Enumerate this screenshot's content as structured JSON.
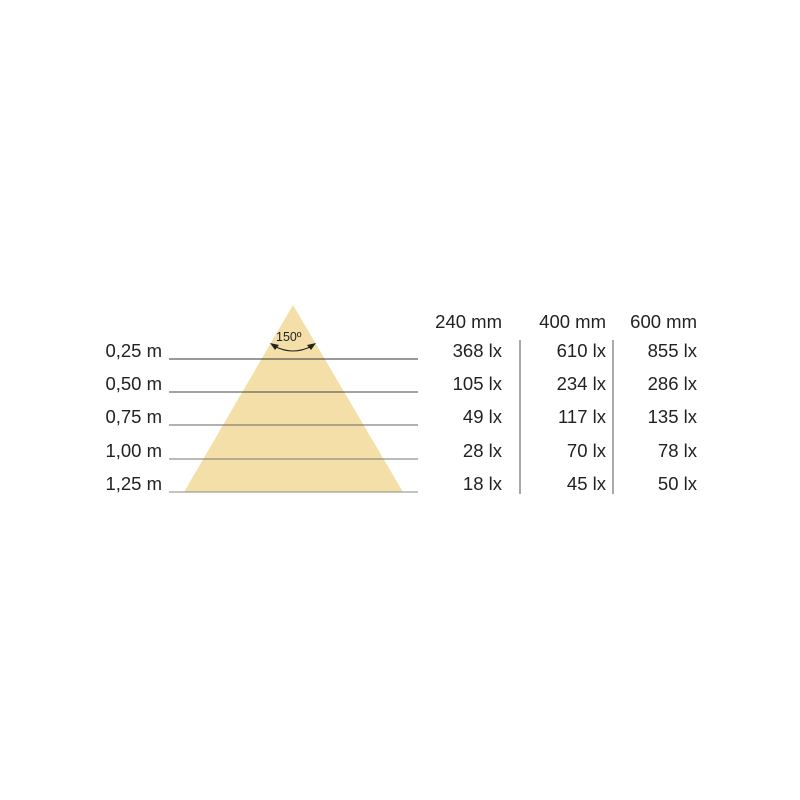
{
  "beam_angle": "150º",
  "beam_color": "#f5dfa8",
  "distances": [
    "0,25 m",
    "0,50 m",
    "0,75 m",
    "1,00 m",
    "1,25 m"
  ],
  "columns": [
    {
      "header": "240 mm",
      "values": [
        "368 lx",
        "105 lx",
        "49 lx",
        "28 lx",
        "18 lx"
      ]
    },
    {
      "header": "400 mm",
      "values": [
        "610 lx",
        "234 lx",
        "117 lx",
        "70 lx",
        "45 lx"
      ]
    },
    {
      "header": "600 mm",
      "values": [
        "855 lx",
        "286 lx",
        "135 lx",
        "78 lx",
        "50 lx"
      ]
    }
  ]
}
